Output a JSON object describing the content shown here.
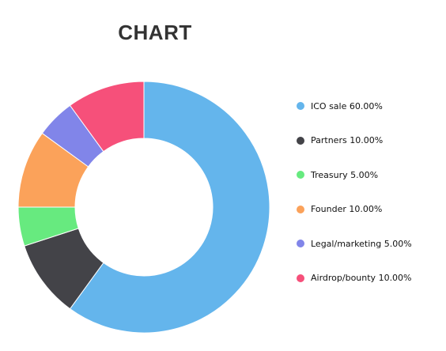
{
  "chart_data": {
    "type": "pie",
    "variant": "donut",
    "title": "CHART",
    "legend_position": "right",
    "slices": [
      {
        "label": "ICO sale",
        "value": 60.0,
        "display": "ICO sale 60.00%",
        "color": "#64b5ec"
      },
      {
        "label": "Partners",
        "value": 10.0,
        "display": "Partners 10.00%",
        "color": "#434348"
      },
      {
        "label": "Treasury",
        "value": 5.0,
        "display": "Treasury 5.00%",
        "color": "#67ea7f"
      },
      {
        "label": "Founder",
        "value": 10.0,
        "display": "Founder 10.00%",
        "color": "#fba25a"
      },
      {
        "label": "Legal/marketing",
        "value": 5.0,
        "display": "Legal/marketing 5.00%",
        "color": "#8185e9"
      },
      {
        "label": "Airdrop/bounty",
        "value": 10.0,
        "display": "Airdrop/bounty 10.00%",
        "color": "#f6507a"
      }
    ]
  }
}
